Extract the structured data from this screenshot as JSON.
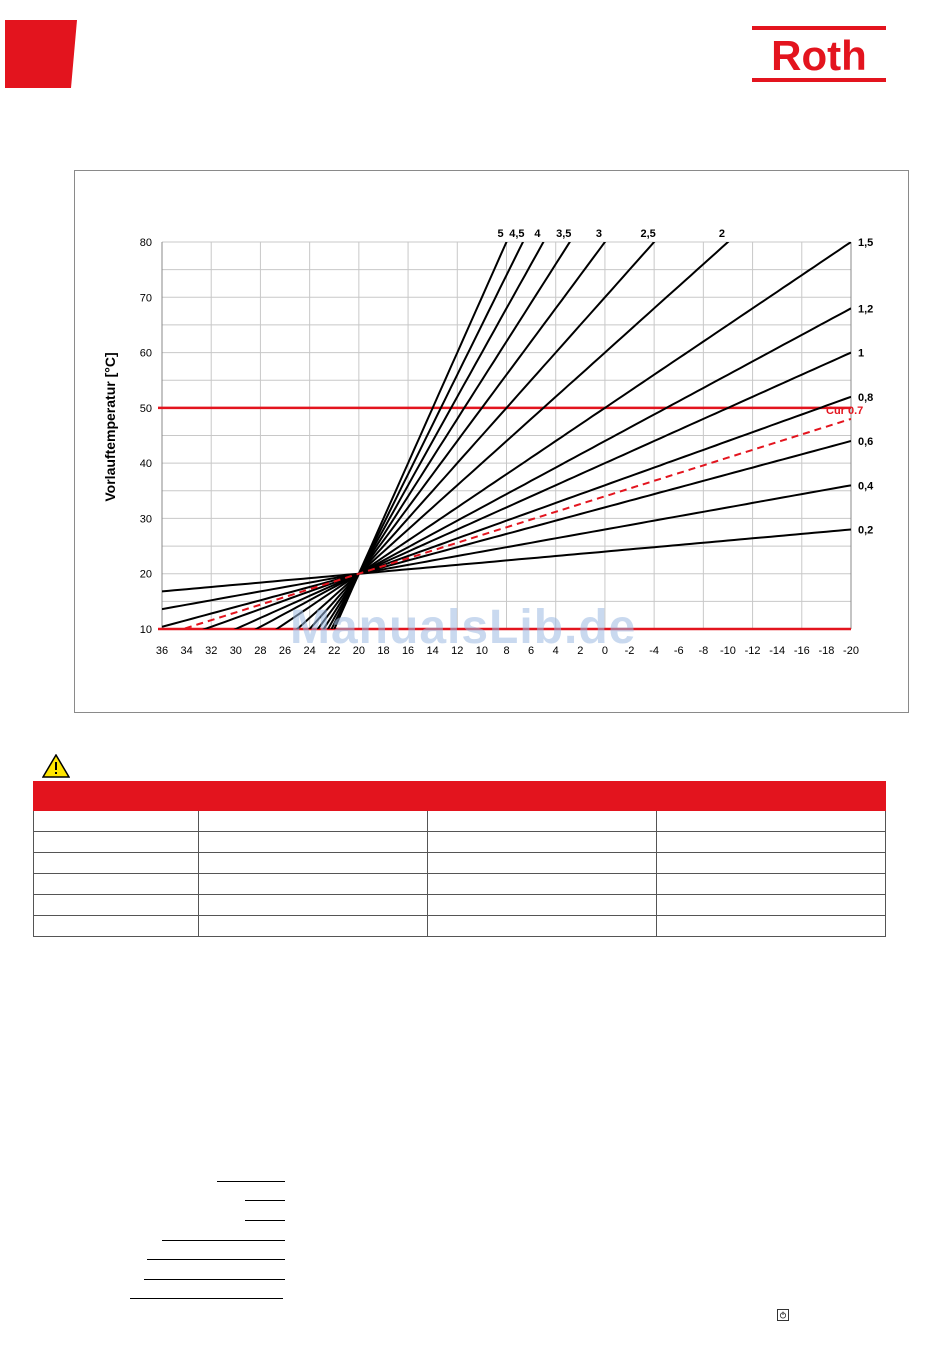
{
  "header": {
    "brand": "Roth",
    "brand_color": "#e3141e",
    "corner_icon": "red-corner-tab"
  },
  "chart_data": {
    "type": "line",
    "ylabel": "Vorlauftemperatur [°C]",
    "xlabel": "",
    "title": "",
    "x_ticks": [
      "36",
      "34",
      "32",
      "30",
      "28",
      "26",
      "24",
      "22",
      "20",
      "18",
      "16",
      "14",
      "12",
      "10",
      "8",
      "6",
      "4",
      "2",
      "0",
      "-2",
      "-4",
      "-6",
      "-8",
      "-10",
      "-12",
      "-14",
      "-16",
      "-18",
      "-20"
    ],
    "y_ticks": [
      "10",
      "20",
      "30",
      "40",
      "50",
      "60",
      "70",
      "80"
    ],
    "xlim": [
      36,
      -20
    ],
    "ylim": [
      10,
      80
    ],
    "grid": true,
    "pivot": {
      "x": 20,
      "y": 20
    },
    "reference_lines": [
      {
        "y": 50,
        "color": "#e3141e"
      },
      {
        "y": 10,
        "color": "#e3141e"
      }
    ],
    "series": [
      {
        "name": "0,2",
        "slope": 0.2,
        "label": "0,2"
      },
      {
        "name": "0,4",
        "slope": 0.4,
        "label": "0,4"
      },
      {
        "name": "0,6",
        "slope": 0.6,
        "label": "0,6"
      },
      {
        "name": "0,8",
        "slope": 0.8,
        "label": "0,8"
      },
      {
        "name": "1",
        "slope": 1.0,
        "label": "1"
      },
      {
        "name": "1,2",
        "slope": 1.2,
        "label": "1,2"
      },
      {
        "name": "1,5",
        "slope": 1.5,
        "label": "1,5"
      },
      {
        "name": "2",
        "slope": 2.0,
        "label": "2"
      },
      {
        "name": "2,5",
        "slope": 2.5,
        "label": "2,5"
      },
      {
        "name": "3",
        "slope": 3.0,
        "label": "3"
      },
      {
        "name": "3,5",
        "slope": 3.5,
        "label": "3,5"
      },
      {
        "name": "4",
        "slope": 4.0,
        "label": "4"
      },
      {
        "name": "4,5",
        "slope": 4.5,
        "label": "4,5"
      },
      {
        "name": "5",
        "slope": 5.0,
        "label": "5"
      }
    ],
    "current_curve": {
      "name": "Cur 0.7",
      "slope": 0.7,
      "label": "Cur 0.7",
      "color": "#e3141e",
      "dashed": true
    }
  },
  "watermark": "ManualsLib.de",
  "warning": {
    "icon": "warning-triangle-icon"
  },
  "table": {
    "header_color": "#e3141e",
    "columns": [
      "",
      "",
      "",
      ""
    ],
    "rows": [
      [
        "",
        "",
        "",
        ""
      ],
      [
        "",
        "",
        "",
        ""
      ],
      [
        "",
        "",
        "",
        ""
      ],
      [
        "",
        "",
        "",
        ""
      ],
      [
        "",
        "",
        "",
        ""
      ],
      [
        "",
        "",
        "",
        ""
      ]
    ]
  },
  "footer": {
    "icon": "power-icon"
  }
}
